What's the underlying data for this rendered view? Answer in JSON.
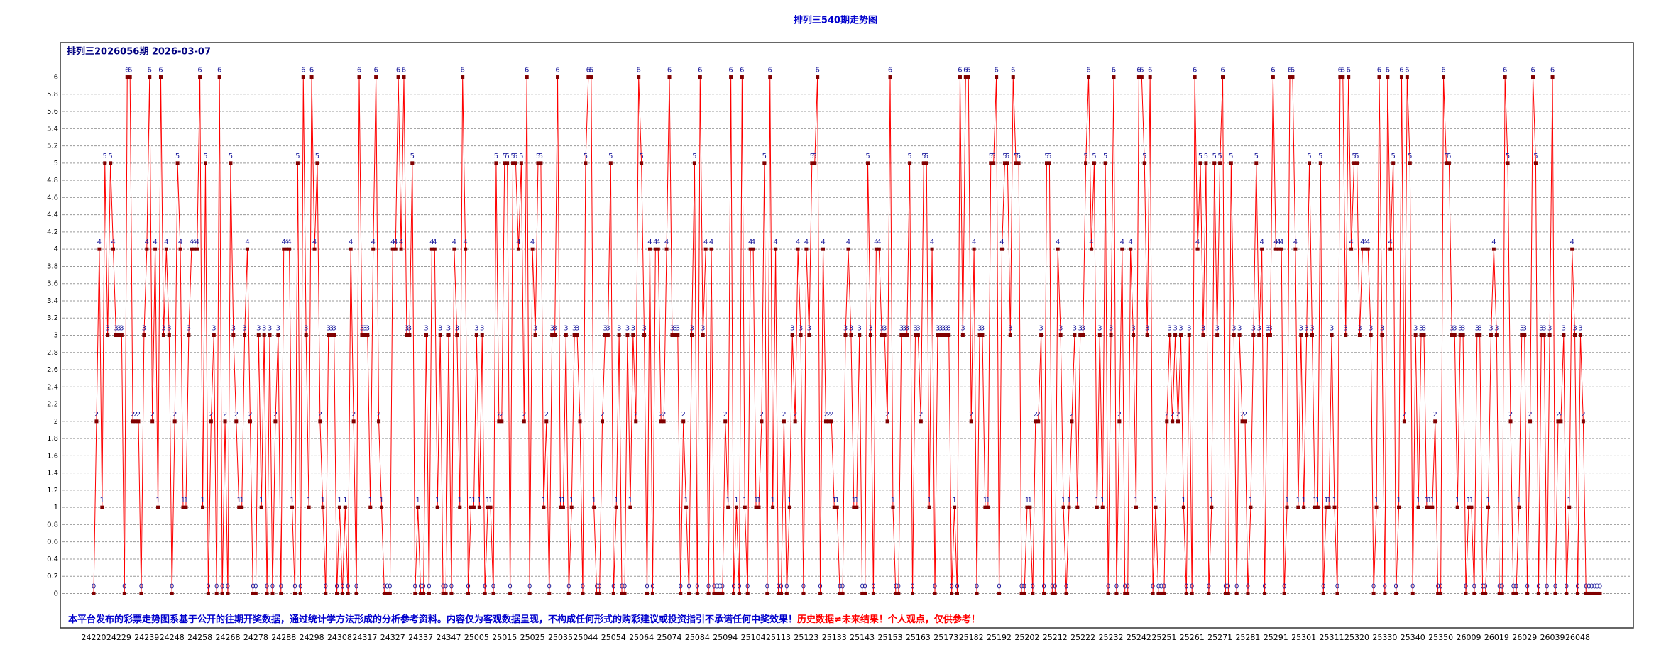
{
  "chart_data": {
    "type": "line",
    "title": "排列三540期走势图",
    "subtitle": "排列三2026056期  2026-03-07",
    "notes": [
      {
        "text": "本平台发布的彩票走势图系基于公开的往期开奖数据，通过统计学方法形成的分析参考资料。内容仅为客观数据呈现，不构成任何形式的购彩建议或投资指引不承诺任何中奖效果！",
        "color": "#0000cc"
      },
      {
        "text": "历史数据≠未来结果！个人观点，仅供参考！",
        "color": "#ff0000"
      }
    ],
    "color": "#ff0000",
    "marker_color": "#800000",
    "label_color": "#1a1a9c",
    "grid": true,
    "ylim": [
      -0.4,
      6.4
    ],
    "yticks": [
      0,
      0.2,
      0.4,
      0.6,
      0.8,
      1,
      1.2,
      1.4,
      1.6,
      1.8,
      2,
      2.2,
      2.4,
      2.6,
      2.8,
      3,
      3.2,
      3.4,
      3.6,
      3.8,
      4,
      4.2,
      4.4,
      4.6,
      4.8,
      5,
      5.2,
      5.4,
      5.6,
      5.8,
      6
    ],
    "categories": [
      "24220",
      null,
      null,
      null,
      null,
      null,
      null,
      null,
      null,
      "24229",
      null,
      null,
      null,
      null,
      null,
      null,
      null,
      null,
      null,
      "24239",
      null,
      null,
      null,
      null,
      null,
      null,
      null,
      null,
      "24248",
      null,
      null,
      null,
      null,
      null,
      null,
      null,
      null,
      null,
      "24258",
      null,
      null,
      null,
      null,
      null,
      null,
      null,
      null,
      null,
      "24268",
      null,
      null,
      null,
      null,
      null,
      null,
      null,
      null,
      null,
      "24278",
      null,
      null,
      null,
      null,
      null,
      null,
      null,
      null,
      null,
      "24288",
      null,
      null,
      null,
      null,
      null,
      null,
      null,
      null,
      null,
      "24298",
      null,
      null,
      null,
      null,
      null,
      null,
      null,
      null,
      null,
      "24308",
      null,
      null,
      null,
      null,
      null,
      null,
      null,
      null,
      "24317",
      null,
      null,
      null,
      null,
      null,
      null,
      null,
      null,
      null,
      "24327",
      null,
      null,
      null,
      null,
      null,
      null,
      null,
      null,
      null,
      "24337",
      null,
      null,
      null,
      null,
      null,
      null,
      null,
      null,
      null,
      "24347",
      null,
      null,
      null,
      null,
      null,
      null,
      null,
      null,
      null,
      "25005",
      null,
      null,
      null,
      null,
      null,
      null,
      null,
      null,
      null,
      "25015",
      null,
      null,
      null,
      null,
      null,
      null,
      null,
      null,
      null,
      "25025",
      null,
      null,
      null,
      null,
      null,
      null,
      null,
      null,
      null,
      "25035",
      null,
      null,
      null,
      null,
      null,
      null,
      null,
      null,
      "25044",
      null,
      null,
      null,
      null,
      null,
      null,
      null,
      null,
      null,
      "25054",
      null,
      null,
      null,
      null,
      null,
      null,
      null,
      null,
      null,
      "25064",
      null,
      null,
      null,
      null,
      null,
      null,
      null,
      null,
      null,
      "25074",
      null,
      null,
      null,
      null,
      null,
      null,
      null,
      null,
      null,
      "25084",
      null,
      null,
      null,
      null,
      null,
      null,
      null,
      null,
      null,
      "25094",
      null,
      null,
      null,
      null,
      null,
      null,
      null,
      null,
      null,
      "25104",
      null,
      null,
      null,
      null,
      null,
      null,
      null,
      null,
      "25113",
      null,
      null,
      null,
      null,
      null,
      null,
      null,
      null,
      null,
      "25123",
      null,
      null,
      null,
      null,
      null,
      null,
      null,
      null,
      null,
      "25133",
      null,
      null,
      null,
      null,
      null,
      null,
      null,
      null,
      null,
      "25143",
      null,
      null,
      null,
      null,
      null,
      null,
      null,
      null,
      null,
      "25153",
      null,
      null,
      null,
      null,
      null,
      null,
      null,
      null,
      null,
      "25163",
      null,
      null,
      null,
      null,
      null,
      null,
      null,
      null,
      null,
      "25173",
      null,
      null,
      null,
      null,
      null,
      null,
      null,
      null,
      "25182",
      null,
      null,
      null,
      null,
      null,
      null,
      null,
      null,
      null,
      "25192",
      null,
      null,
      null,
      null,
      null,
      null,
      null,
      null,
      null,
      "25202",
      null,
      null,
      null,
      null,
      null,
      null,
      null,
      null,
      null,
      "25212",
      null,
      null,
      null,
      null,
      null,
      null,
      null,
      null,
      null,
      "25222",
      null,
      null,
      null,
      null,
      null,
      null,
      null,
      null,
      null,
      "25232",
      null,
      null,
      null,
      null,
      null,
      null,
      null,
      null,
      null,
      "25242",
      null,
      null,
      null,
      null,
      null,
      null,
      null,
      null,
      "25251",
      null,
      null,
      null,
      null,
      null,
      null,
      null,
      null,
      null,
      "25261",
      null,
      null,
      null,
      null,
      null,
      null,
      null,
      null,
      null,
      "25271",
      null,
      null,
      null,
      null,
      null,
      null,
      null,
      null,
      null,
      "25281",
      null,
      null,
      null,
      null,
      null,
      null,
      null,
      null,
      null,
      "25291",
      null,
      null,
      null,
      null,
      null,
      null,
      null,
      null,
      null,
      "25301",
      null,
      null,
      null,
      null,
      null,
      null,
      null,
      null,
      null,
      "25311",
      null,
      null,
      null,
      null,
      null,
      null,
      null,
      null,
      "25320",
      null,
      null,
      null,
      null,
      null,
      null,
      null,
      null,
      null,
      "25330",
      null,
      null,
      null,
      null,
      null,
      null,
      null,
      null,
      null,
      "25340",
      null,
      null,
      null,
      null,
      null,
      null,
      null,
      null,
      null,
      "25350",
      null,
      null,
      null,
      null,
      null,
      null,
      null,
      null,
      null,
      "26009",
      null,
      null,
      null,
      null,
      null,
      null,
      null,
      null,
      null,
      "26019",
      null,
      null,
      null,
      null,
      null,
      null,
      null,
      null,
      null,
      "26029",
      null,
      null,
      null,
      null,
      null,
      null,
      null,
      null,
      null,
      "26039",
      null,
      null,
      null,
      null,
      null,
      null,
      null,
      null,
      "26048",
      null,
      null,
      null,
      null,
      null,
      null,
      null,
      null
    ],
    "values": [
      0,
      2,
      4,
      1,
      5,
      3,
      5,
      4,
      3,
      3,
      3,
      0,
      6,
      6,
      2,
      2,
      2,
      0,
      3,
      4,
      6,
      2,
      4,
      1,
      6,
      3,
      4,
      3,
      0,
      2,
      5,
      4,
      1,
      1,
      3,
      4,
      4,
      4,
      6,
      1,
      5,
      0,
      2,
      3,
      0,
      6,
      0,
      2,
      0,
      5,
      3,
      2,
      1,
      1,
      3,
      4,
      2,
      0,
      0,
      3,
      1,
      3,
      0,
      3,
      0,
      2,
      3,
      0,
      4,
      4,
      4,
      1,
      0,
      5,
      0,
      6,
      3,
      1,
      6,
      4,
      5,
      2,
      1,
      0,
      3,
      3,
      3,
      0,
      1,
      0,
      1,
      0,
      4,
      2,
      0,
      6,
      3,
      3,
      3,
      1,
      4,
      6,
      2,
      1,
      0,
      0,
      0,
      4,
      4,
      6,
      4,
      6,
      3,
      3,
      5,
      0,
      1,
      0,
      0,
      3,
      0,
      4,
      4,
      1,
      3,
      0,
      0,
      3,
      0,
      4,
      3,
      1,
      6,
      4,
      0,
      1,
      1,
      3,
      1,
      3,
      0,
      1,
      1,
      0,
      5,
      2,
      2,
      5,
      5,
      0,
      5,
      5,
      4,
      5,
      2,
      6,
      0,
      4,
      3,
      5,
      5,
      1,
      2,
      0,
      3,
      3,
      6,
      1,
      1,
      3,
      0,
      1,
      3,
      3,
      2,
      0,
      5,
      6,
      6,
      1,
      0,
      0,
      2,
      3,
      3,
      5,
      0,
      1,
      3,
      0,
      0,
      3,
      1,
      3,
      2,
      6,
      5,
      3,
      0,
      4,
      0,
      4,
      4,
      2,
      2,
      4,
      6,
      3,
      3,
      3,
      0,
      2,
      1,
      0,
      3,
      5,
      0,
      6,
      3,
      4,
      0,
      4,
      0,
      0,
      0,
      0,
      2,
      1,
      6,
      0,
      1,
      0,
      6,
      1,
      0,
      4,
      4,
      1,
      1,
      2,
      5,
      0,
      6,
      1,
      4,
      0,
      0,
      2,
      0,
      1,
      3,
      2,
      4,
      3,
      0,
      4,
      3,
      5,
      5,
      6,
      0,
      4,
      2,
      2,
      2,
      1,
      1,
      0,
      0,
      3,
      4,
      3,
      1,
      1,
      3,
      0,
      0,
      5,
      3,
      0,
      4,
      4,
      3,
      3,
      2,
      6,
      1,
      0,
      0,
      3,
      3,
      3,
      5,
      0,
      3,
      3,
      2,
      5,
      5,
      1,
      4,
      0,
      3,
      3,
      3,
      3,
      3,
      0,
      1,
      0,
      6,
      3,
      6,
      6,
      2,
      4,
      0,
      3,
      3,
      1,
      1,
      5,
      5,
      6,
      0,
      4,
      5,
      5,
      3,
      6,
      5,
      5,
      0,
      0,
      1,
      1,
      0,
      2,
      2,
      3,
      0,
      5,
      5,
      0,
      0,
      4,
      3,
      1,
      0,
      1,
      2,
      3,
      1,
      3,
      3,
      5,
      6,
      4,
      5,
      1,
      3,
      1,
      5,
      0,
      3,
      6,
      0,
      2,
      4,
      0,
      0,
      4,
      3,
      1,
      6,
      6,
      5,
      3,
      6,
      0,
      1,
      0,
      0,
      0,
      2,
      3,
      2,
      3,
      2,
      3,
      1,
      0,
      3,
      0,
      6,
      4,
      5,
      3,
      5,
      0,
      1,
      5,
      3,
      5,
      6,
      0,
      0,
      5,
      3,
      0,
      3,
      2,
      2,
      0,
      1,
      3,
      5,
      3,
      4,
      0,
      3,
      3,
      6,
      4,
      4,
      4,
      0,
      1,
      6,
      6,
      4,
      1,
      3,
      1,
      3,
      5,
      3,
      1,
      1,
      5,
      0,
      1,
      1,
      3,
      1,
      0,
      6,
      6,
      3,
      6,
      4,
      5,
      5,
      3,
      4,
      4,
      4,
      3,
      0,
      1,
      6,
      3,
      0,
      6,
      4,
      5,
      0,
      1,
      6,
      2,
      6,
      5,
      0,
      3,
      1,
      3,
      3,
      1,
      1,
      1,
      2,
      0,
      0,
      6,
      5,
      5,
      3,
      3,
      1,
      3,
      3,
      0,
      1,
      1,
      0,
      3,
      3,
      0,
      0,
      1,
      3,
      4,
      3,
      0,
      0,
      6,
      5,
      2,
      0,
      0,
      1,
      3,
      3,
      0,
      2,
      6,
      5,
      0,
      3,
      3,
      0,
      3,
      6,
      0,
      2,
      2,
      3,
      0,
      1,
      4,
      3,
      0,
      3,
      2,
      0,
      0,
      0,
      0,
      0,
      0
    ]
  }
}
